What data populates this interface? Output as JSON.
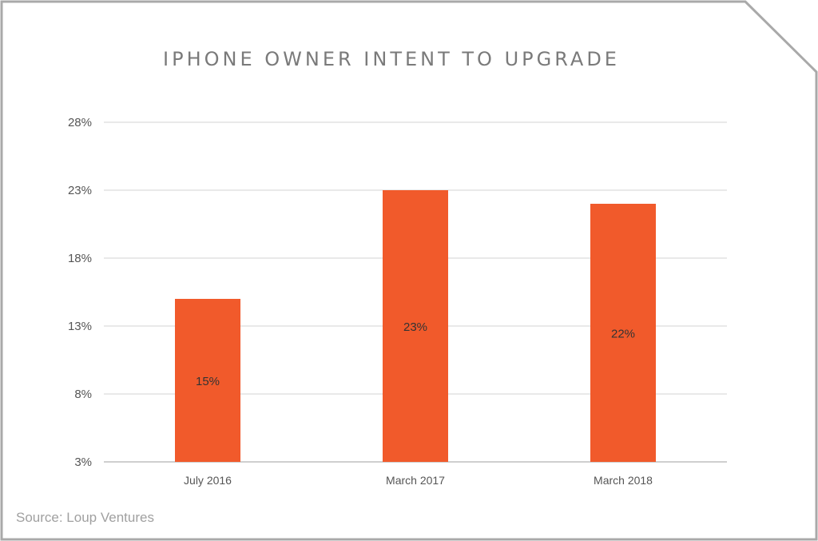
{
  "chart_data": {
    "type": "bar",
    "title": "IPHONE OWNER INTENT TO UPGRADE",
    "categories": [
      "July 2016",
      "March 2017",
      "March 2018"
    ],
    "values": [
      15,
      23,
      22
    ],
    "data_labels": [
      "15%",
      "23%",
      "22%"
    ],
    "xlabel": "",
    "ylabel": "",
    "ylim": [
      3,
      28
    ],
    "yticks": [
      3,
      8,
      13,
      18,
      23,
      28
    ],
    "ytick_labels": [
      "3%",
      "8%",
      "13%",
      "18%",
      "23%",
      "28%"
    ],
    "grid": true,
    "bar_color": "#f15a2b",
    "source": "Source: Loup Ventures"
  }
}
